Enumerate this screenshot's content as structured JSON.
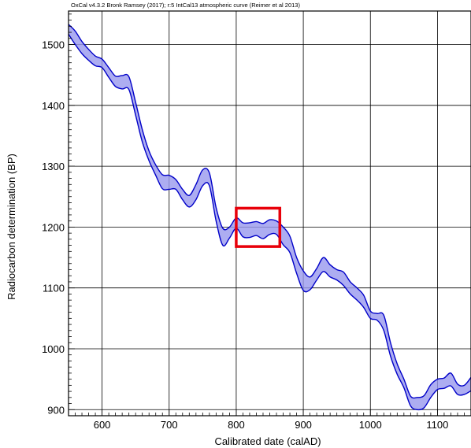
{
  "chart_data": {
    "type": "area",
    "title": "OxCal v4.3.2 Bronk Ramsey (2017); r:5 IntCal13 atmospheric curve (Reimer et al 2013)",
    "xlabel": "Calibrated date (calAD)",
    "ylabel": "Radiocarbon determination (BP)",
    "xlim": [
      550,
      1150
    ],
    "ylim": [
      890,
      1555
    ],
    "x_ticks": [
      600,
      700,
      800,
      900,
      1000,
      1100
    ],
    "y_ticks": [
      900,
      1000,
      1100,
      1200,
      1300,
      1400,
      1500
    ],
    "grid": true,
    "series": [
      {
        "x": [
          550,
          560,
          570,
          580,
          590,
          600,
          610,
          620,
          630,
          640,
          650,
          660,
          670,
          680,
          690,
          700,
          710,
          720,
          730,
          740,
          750,
          760,
          770,
          780,
          790,
          800,
          810,
          820,
          830,
          840,
          850,
          860,
          870,
          880,
          890,
          900,
          910,
          920,
          930,
          940,
          950,
          960,
          970,
          980,
          990,
          1000,
          1010,
          1020,
          1030,
          1040,
          1050,
          1060,
          1070,
          1080,
          1090,
          1100,
          1110,
          1120,
          1130,
          1140,
          1150
        ],
        "upper": [
          1533,
          1522,
          1505,
          1492,
          1481,
          1476,
          1462,
          1448,
          1449,
          1447,
          1405,
          1360,
          1325,
          1302,
          1286,
          1285,
          1278,
          1262,
          1252,
          1270,
          1294,
          1289,
          1232,
          1198,
          1200,
          1215,
          1207,
          1207,
          1209,
          1206,
          1212,
          1210,
          1200,
          1185,
          1150,
          1128,
          1118,
          1132,
          1150,
          1138,
          1130,
          1126,
          1110,
          1100,
          1088,
          1062,
          1058,
          1055,
          1010,
          975,
          950,
          922,
          920,
          923,
          941,
          950,
          952,
          960,
          942,
          940,
          953
        ],
        "lower": [
          1517,
          1500,
          1485,
          1474,
          1465,
          1462,
          1446,
          1431,
          1427,
          1426,
          1384,
          1340,
          1309,
          1285,
          1263,
          1262,
          1262,
          1245,
          1233,
          1245,
          1268,
          1268,
          1210,
          1170,
          1182,
          1198,
          1184,
          1183,
          1186,
          1181,
          1188,
          1188,
          1171,
          1158,
          1124,
          1096,
          1097,
          1113,
          1127,
          1118,
          1113,
          1104,
          1090,
          1080,
          1068,
          1050,
          1047,
          1030,
          988,
          958,
          936,
          906,
          900,
          903,
          920,
          933,
          935,
          939,
          925,
          925,
          931
        ]
      }
    ],
    "highlight_box": {
      "x": [
        800,
        865
      ],
      "y": [
        1168,
        1231
      ],
      "color": "#e8000a"
    },
    "colors": {
      "band_fill": "#9898ee",
      "band_stroke": "#0000c8",
      "grid": "#000000"
    }
  }
}
